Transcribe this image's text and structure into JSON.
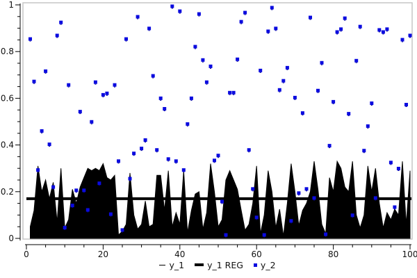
{
  "chart_data": {
    "type": "combo",
    "title": "",
    "xlabel": "",
    "ylabel": "",
    "xlim": [
      0,
      100
    ],
    "ylim": [
      0,
      1
    ],
    "grid": false,
    "x_ticks": {
      "major": [
        0,
        20,
        40,
        60,
        80,
        100
      ],
      "minor_step": 5
    },
    "y_ticks": {
      "major": [
        0,
        0.2,
        0.4,
        0.6,
        0.8,
        1
      ],
      "minor_step": 0.05
    },
    "legend": {
      "position": "bottom-center"
    },
    "x_start": 1,
    "x_step": 1,
    "series": [
      {
        "name": "y_1",
        "type": "area",
        "color": "#000000",
        "values": [
          0.05,
          0.12,
          0.31,
          0.2,
          0.25,
          0.17,
          0.24,
          0.07,
          0.3,
          0.045,
          0.08,
          0.21,
          0.15,
          0.22,
          0.26,
          0.3,
          0.29,
          0.3,
          0.29,
          0.32,
          0.26,
          0.25,
          0.27,
          0.015,
          0.03,
          0.06,
          0.28,
          0.1,
          0.04,
          0.06,
          0.16,
          0.05,
          0.06,
          0.27,
          0.27,
          0.12,
          0.29,
          0.05,
          0.11,
          0.06,
          0.29,
          0.025,
          0.12,
          0.19,
          0.2,
          0.04,
          0.11,
          0.32,
          0.2,
          0.05,
          0.08,
          0.25,
          0.29,
          0.25,
          0.21,
          0.12,
          0.035,
          0.06,
          0.15,
          0.31,
          0.02,
          0.1,
          0.29,
          0.2,
          0.046,
          0.125,
          0.01,
          0.15,
          0.32,
          0.2,
          0.055,
          0.12,
          0.15,
          0.2,
          0.33,
          0.21,
          0.06,
          0.02,
          0.26,
          0.2,
          0.33,
          0.3,
          0.22,
          0.2,
          0.33,
          0.1,
          0.045,
          0.1,
          0.31,
          0.2,
          0.3,
          0.15,
          0.045,
          0.11,
          0.08,
          0.125,
          0.1,
          0.33,
          0.06,
          0.29
        ]
      },
      {
        "name": "y_1 REG",
        "type": "hline",
        "color": "#000000",
        "thickness": 4,
        "value": 0.17
      },
      {
        "name": "y_2",
        "type": "scatter",
        "color": "#0b0bdf",
        "marker": "square",
        "marker_size": 5,
        "values": [
          0.854,
          0.672,
          0.293,
          0.46,
          0.716,
          0.403,
          0.22,
          0.869,
          0.925,
          0.046,
          0.657,
          0.141,
          0.206,
          0.543,
          0.206,
          0.122,
          0.499,
          0.669,
          0.236,
          0.615,
          0.621,
          0.104,
          0.657,
          0.331,
          0.036,
          0.854,
          0.256,
          0.364,
          0.949,
          0.385,
          0.421,
          0.899,
          0.696,
          0.379,
          0.6,
          0.555,
          0.34,
          0.994,
          0.331,
          0.973,
          0.293,
          0.49,
          0.6,
          0.821,
          0.961,
          0.764,
          0.669,
          0.737,
          0.334,
          0.355,
          0.158,
          0.015,
          0.624,
          0.624,
          0.767,
          0.928,
          0.967,
          0.379,
          0.212,
          0.09,
          0.719,
          0.015,
          0.887,
          0.988,
          0.899,
          0.636,
          0.675,
          0.731,
          0.075,
          0.603,
          0.194,
          0.537,
          0.212,
          0.946,
          0.173,
          0.633,
          0.752,
          0.018,
          0.397,
          0.585,
          0.884,
          0.896,
          0.943,
          0.534,
          0.099,
          0.761,
          0.907,
          0.376,
          0.481,
          0.579,
          0.173,
          0.893,
          0.884,
          0.896,
          0.325,
          0.134,
          0.299,
          0.851,
          0.573,
          0.869
        ]
      }
    ],
    "colors": {
      "axis": "#000000",
      "plot_border": "#c6c6c6",
      "background": "#ffffff",
      "marker_accent": "#000099"
    }
  }
}
